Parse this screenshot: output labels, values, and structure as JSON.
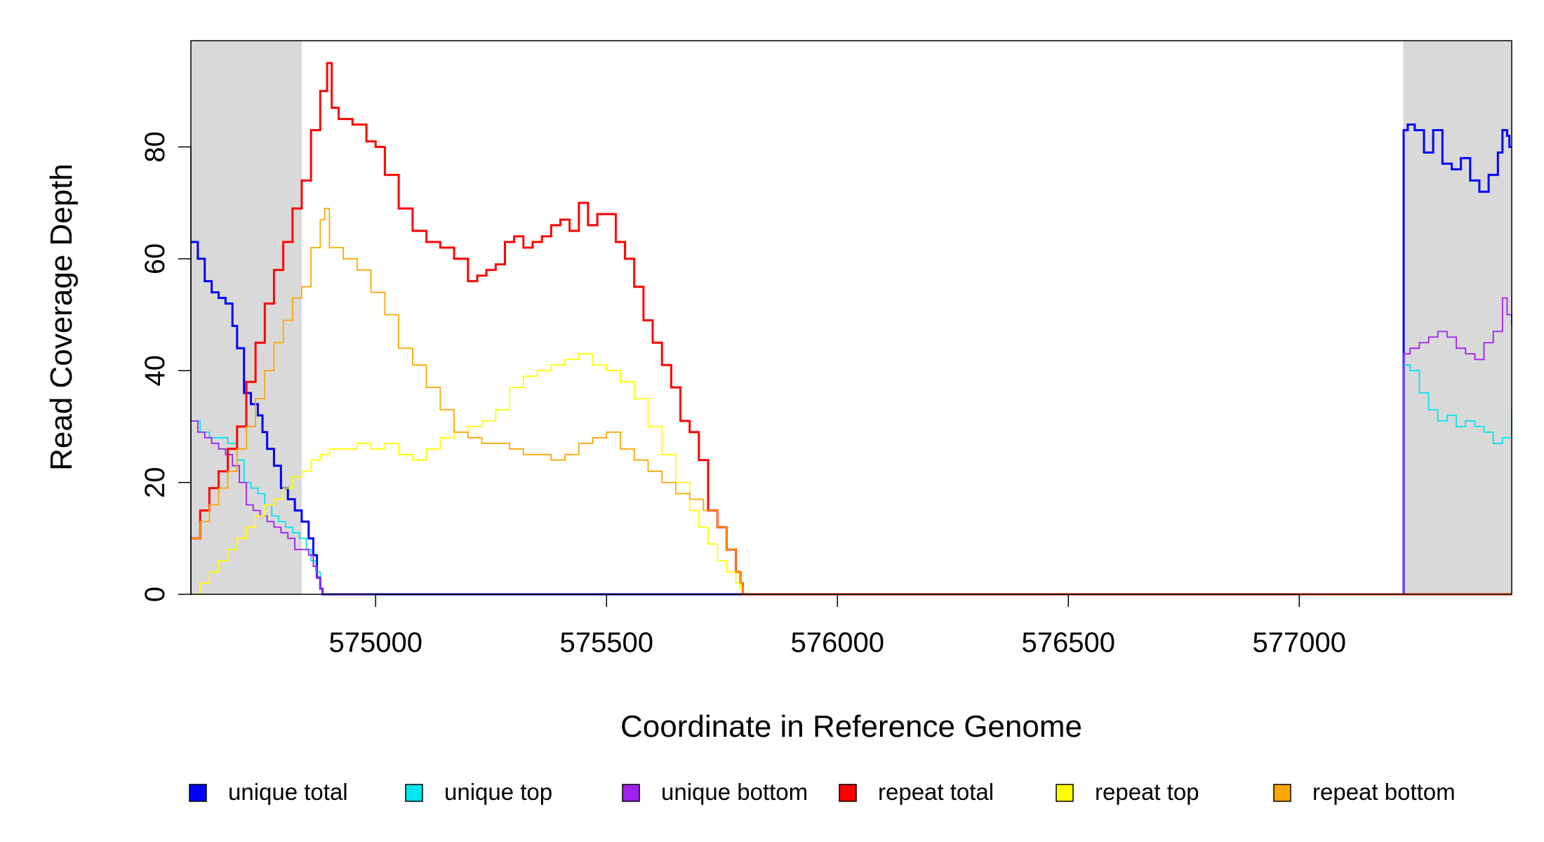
{
  "chart_data": {
    "type": "line",
    "xlabel": "Coordinate in Reference Genome",
    "ylabel": "Read Coverage Depth",
    "xlim": [
      574600,
      577460
    ],
    "ylim": [
      0,
      99
    ],
    "x_ticks": [
      575000,
      575500,
      576000,
      576500,
      577000
    ],
    "x_tick_labels": [
      "575000",
      "575500",
      "576000",
      "576500",
      "577000"
    ],
    "y_ticks": [
      0,
      20,
      40,
      60,
      80
    ],
    "y_tick_labels": [
      "0",
      "20",
      "40",
      "60",
      "80"
    ],
    "shaded_regions": [
      {
        "x_start": 574600,
        "x_end": 574840,
        "color": "#d9d9d9"
      },
      {
        "x_start": 577225,
        "x_end": 577460,
        "color": "#d9d9d9"
      }
    ],
    "legend_position": "bottom",
    "series": [
      {
        "name": "unique total",
        "color": "#0000ff",
        "x": [
          574600,
          574615,
          574630,
          574645,
          574660,
          574675,
          574690,
          574700,
          574715,
          574730,
          574745,
          574755,
          574765,
          574780,
          574795,
          574810,
          574825,
          574840,
          574855,
          574865,
          574873,
          574880,
          574885,
          574890,
          574895,
          577225,
          577226,
          577235,
          577250,
          577270,
          577290,
          577310,
          577330,
          577350,
          577370,
          577390,
          577410,
          577430,
          577440,
          577450,
          577455,
          577460
        ],
        "y": [
          63,
          60,
          56,
          54,
          53,
          52,
          48,
          44,
          36,
          34,
          32,
          29,
          26,
          23,
          19,
          17,
          15,
          13,
          10,
          7,
          3,
          1,
          0,
          0,
          0,
          0,
          83,
          84,
          83,
          79,
          83,
          77,
          76,
          78,
          74,
          72,
          75,
          79,
          83,
          82,
          80,
          80
        ]
      },
      {
        "name": "unique top",
        "color": "#00e5ee",
        "x": [
          574600,
          574620,
          574640,
          574660,
          574680,
          574700,
          574715,
          574730,
          574745,
          574760,
          574775,
          574790,
          574805,
          574820,
          574835,
          574850,
          574860,
          574870,
          574880,
          574885,
          574890,
          577225,
          577226,
          577240,
          577260,
          577280,
          577300,
          577320,
          577340,
          577360,
          577380,
          577400,
          577420,
          577440,
          577460
        ],
        "y": [
          31,
          29,
          28,
          28,
          27,
          24,
          20,
          19,
          18,
          16,
          14,
          13,
          12,
          11,
          10,
          8,
          6,
          4,
          1,
          0,
          0,
          0,
          41,
          40,
          36,
          33,
          31,
          32,
          30,
          31,
          30,
          29,
          27,
          28,
          33
        ]
      },
      {
        "name": "unique bottom",
        "color": "#a020f0",
        "x": [
          574600,
          574615,
          574630,
          574645,
          574660,
          574675,
          574690,
          574705,
          574720,
          574735,
          574750,
          574765,
          574780,
          574795,
          574810,
          574825,
          574840,
          574855,
          574865,
          574873,
          574880,
          574885,
          574890,
          577225,
          577226,
          577240,
          577260,
          577280,
          577300,
          577320,
          577340,
          577360,
          577380,
          577400,
          577420,
          577440,
          577450,
          577460
        ],
        "y": [
          31,
          29,
          28,
          27,
          26,
          25,
          23,
          20,
          16,
          15,
          14,
          13,
          12,
          11,
          10,
          8,
          8,
          7,
          5,
          3,
          1,
          0,
          0,
          0,
          43,
          44,
          45,
          46,
          47,
          46,
          44,
          43,
          42,
          45,
          47,
          53,
          50,
          48
        ]
      },
      {
        "name": "repeat total",
        "color": "#ff0000",
        "x": [
          574600,
          574620,
          574640,
          574660,
          574680,
          574700,
          574720,
          574740,
          574760,
          574780,
          574800,
          574820,
          574840,
          574860,
          574880,
          574895,
          574905,
          574920,
          574950,
          574980,
          575000,
          575020,
          575050,
          575080,
          575110,
          575140,
          575170,
          575200,
          575220,
          575240,
          575260,
          575280,
          575300,
          575320,
          575340,
          575360,
          575380,
          575400,
          575420,
          575440,
          575460,
          575480,
          575500,
          575520,
          575540,
          575560,
          575580,
          575600,
          575620,
          575640,
          575660,
          575680,
          575700,
          575720,
          575740,
          575760,
          575780,
          575790,
          575795,
          577460
        ],
        "y": [
          10,
          15,
          19,
          22,
          26,
          30,
          38,
          45,
          52,
          58,
          63,
          69,
          74,
          83,
          90,
          95,
          87,
          85,
          84,
          81,
          80,
          75,
          69,
          65,
          63,
          62,
          60,
          56,
          57,
          58,
          59,
          63,
          64,
          62,
          63,
          64,
          66,
          67,
          65,
          70,
          66,
          68,
          68,
          63,
          60,
          55,
          49,
          45,
          41,
          37,
          31,
          29,
          24,
          15,
          12,
          8,
          4,
          2,
          0,
          0
        ]
      },
      {
        "name": "repeat top",
        "color": "#ffff00",
        "x": [
          574600,
          574620,
          574640,
          574660,
          574680,
          574700,
          574720,
          574740,
          574760,
          574780,
          574800,
          574820,
          574840,
          574860,
          574880,
          574900,
          574930,
          574960,
          574990,
          575020,
          575050,
          575080,
          575110,
          575140,
          575170,
          575200,
          575230,
          575260,
          575290,
          575320,
          575350,
          575380,
          575410,
          575440,
          575470,
          575500,
          575530,
          575560,
          575590,
          575620,
          575650,
          575680,
          575700,
          575720,
          575740,
          575760,
          575780,
          575790,
          575795,
          577460
        ],
        "y": [
          0,
          2,
          4,
          6,
          8,
          10,
          12,
          14,
          16,
          17,
          19,
          21,
          22,
          24,
          25,
          26,
          26,
          27,
          26,
          27,
          25,
          24,
          26,
          28,
          29,
          30,
          31,
          33,
          37,
          39,
          40,
          41,
          42,
          43,
          41,
          40,
          38,
          35,
          30,
          25,
          20,
          15,
          12,
          9,
          6,
          4,
          2,
          1,
          0,
          0
        ]
      },
      {
        "name": "repeat bottom",
        "color": "#ffa500",
        "x": [
          574600,
          574620,
          574640,
          574660,
          574680,
          574700,
          574720,
          574740,
          574760,
          574780,
          574800,
          574820,
          574840,
          574860,
          574880,
          574890,
          574900,
          574930,
          574960,
          574990,
          575020,
          575050,
          575080,
          575110,
          575140,
          575170,
          575200,
          575230,
          575260,
          575290,
          575320,
          575350,
          575380,
          575410,
          575440,
          575470,
          575500,
          575530,
          575560,
          575590,
          575620,
          575650,
          575680,
          575710,
          575740,
          575760,
          575780,
          575790,
          575795,
          577460
        ],
        "y": [
          10,
          13,
          16,
          19,
          22,
          26,
          30,
          35,
          40,
          45,
          49,
          53,
          55,
          62,
          67,
          69,
          62,
          60,
          58,
          54,
          50,
          44,
          41,
          37,
          33,
          29,
          28,
          27,
          27,
          26,
          25,
          25,
          24,
          25,
          27,
          28,
          29,
          26,
          24,
          22,
          20,
          18,
          17,
          15,
          12,
          8,
          4,
          2,
          0,
          0
        ]
      }
    ]
  }
}
